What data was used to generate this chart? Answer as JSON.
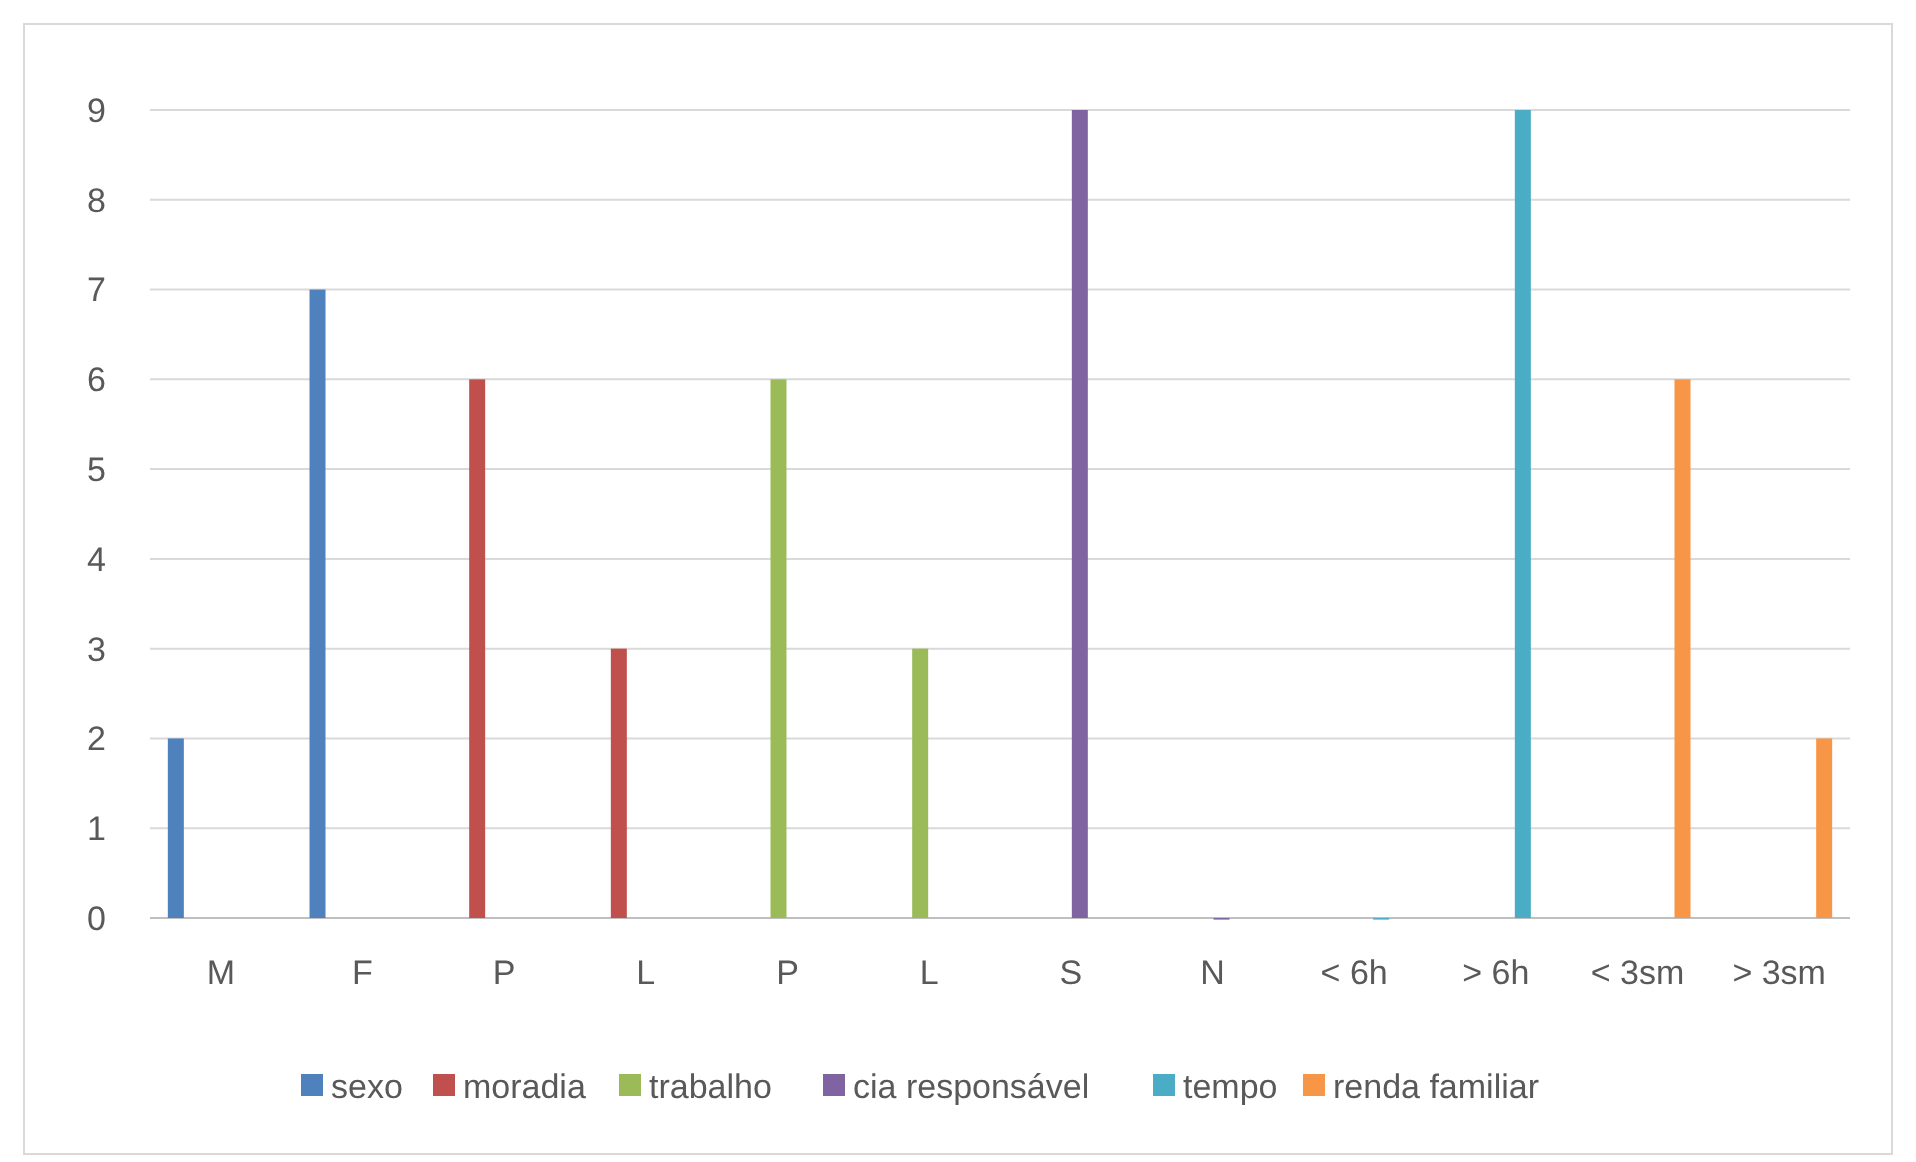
{
  "chart_data": {
    "type": "bar",
    "categories": [
      "M",
      "F",
      "P",
      "L",
      "P",
      "L",
      "S",
      "N",
      "< 6h",
      "> 6h",
      "< 3sm",
      "> 3sm"
    ],
    "series": [
      {
        "name": "sexo",
        "color": "#4f81bd",
        "values": [
          2,
          7,
          null,
          null,
          null,
          null,
          null,
          null,
          null,
          null,
          null,
          null
        ]
      },
      {
        "name": "moradia",
        "color": "#c0504d",
        "values": [
          null,
          null,
          6,
          3,
          null,
          null,
          null,
          null,
          null,
          null,
          null,
          null
        ]
      },
      {
        "name": "trabalho",
        "color": "#9bbb59",
        "values": [
          null,
          null,
          null,
          null,
          6,
          3,
          null,
          null,
          null,
          null,
          null,
          null
        ]
      },
      {
        "name": "cia responsável",
        "color": "#8064a2",
        "values": [
          null,
          null,
          null,
          null,
          null,
          null,
          9,
          0,
          null,
          null,
          null,
          null
        ]
      },
      {
        "name": "tempo",
        "color": "#4bacc6",
        "values": [
          null,
          null,
          null,
          null,
          null,
          null,
          null,
          null,
          0,
          9,
          null,
          null
        ]
      },
      {
        "name": "renda familiar",
        "color": "#f79646",
        "values": [
          null,
          null,
          null,
          null,
          null,
          null,
          null,
          null,
          null,
          null,
          6,
          2
        ]
      }
    ],
    "ylim": [
      0,
      9
    ],
    "yticks": [
      0,
      1,
      2,
      3,
      4,
      5,
      6,
      7,
      8,
      9
    ],
    "grid": "y",
    "legend": "bottom"
  }
}
